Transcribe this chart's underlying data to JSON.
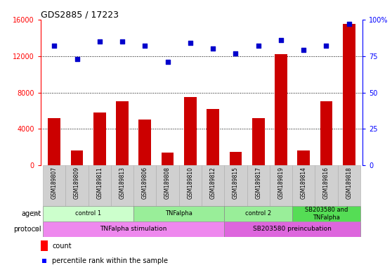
{
  "title": "GDS2885 / 17223",
  "samples": [
    "GSM189807",
    "GSM189809",
    "GSM189811",
    "GSM189813",
    "GSM189806",
    "GSM189808",
    "GSM189810",
    "GSM189812",
    "GSM189815",
    "GSM189817",
    "GSM189819",
    "GSM189814",
    "GSM189816",
    "GSM189818"
  ],
  "counts": [
    5200,
    1600,
    5800,
    7000,
    5000,
    1400,
    7500,
    6200,
    1500,
    5200,
    12200,
    1600,
    7000,
    15500
  ],
  "percentiles": [
    82,
    73,
    85,
    85,
    82,
    71,
    84,
    80,
    77,
    82,
    86,
    79,
    82,
    97
  ],
  "bar_color": "#cc0000",
  "dot_color": "#0000cc",
  "ylim_left": [
    0,
    16000
  ],
  "ylim_right": [
    0,
    100
  ],
  "yticks_left": [
    0,
    4000,
    8000,
    12000,
    16000
  ],
  "yticks_right": [
    0,
    25,
    50,
    75,
    100
  ],
  "grid_values": [
    4000,
    8000,
    12000
  ],
  "agent_groups": [
    {
      "label": "control 1",
      "start": 0,
      "end": 3,
      "color": "#ccffcc"
    },
    {
      "label": "TNFalpha",
      "start": 4,
      "end": 7,
      "color": "#99ee99"
    },
    {
      "label": "control 2",
      "start": 8,
      "end": 10,
      "color": "#99ee99"
    },
    {
      "label": "SB203580 and\nTNFalpha",
      "start": 11,
      "end": 13,
      "color": "#55dd55"
    }
  ],
  "protocol_groups": [
    {
      "label": "TNFalpha stimulation",
      "start": 0,
      "end": 7,
      "color": "#ee88ee"
    },
    {
      "label": "SB203580 preincubation",
      "start": 8,
      "end": 13,
      "color": "#dd66dd"
    }
  ],
  "agent_label": "agent",
  "protocol_label": "protocol",
  "legend_count": "count",
  "legend_pct": "percentile rank within the sample"
}
